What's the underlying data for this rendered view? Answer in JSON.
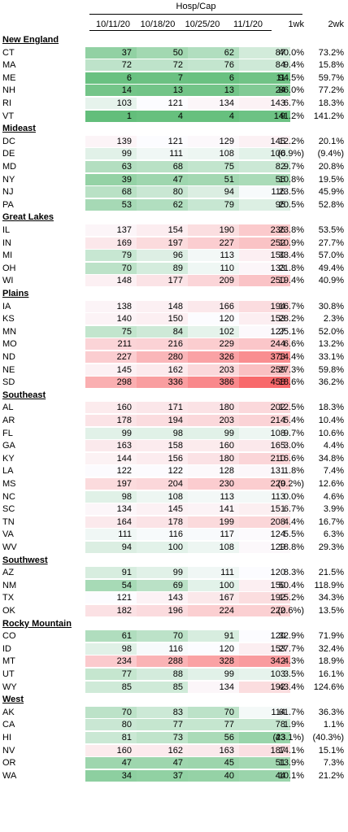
{
  "header": {
    "group_title": "Hosp/Cap",
    "dates": [
      "10/11/20",
      "10/18/20",
      "10/25/20",
      "11/1/20"
    ],
    "change_cols": [
      "1wk",
      "2wk"
    ]
  },
  "regions": [
    {
      "name": "New England",
      "rows": [
        {
          "state": "CT",
          "values": [
            37,
            50,
            62,
            87
          ],
          "wk1": "40.0%",
          "wk2": "73.2%"
        },
        {
          "state": "MA",
          "values": [
            72,
            72,
            76,
            84
          ],
          "wk1": "9.4%",
          "wk2": "15.8%"
        },
        {
          "state": "ME",
          "values": [
            6,
            7,
            6,
            11
          ],
          "wk1": "94.5%",
          "wk2": "59.7%"
        },
        {
          "state": "NH",
          "values": [
            14,
            13,
            13,
            24
          ],
          "wk1": "86.0%",
          "wk2": "77.2%"
        },
        {
          "state": "RI",
          "values": [
            103,
            121,
            134,
            143
          ],
          "wk1": "6.7%",
          "wk2": "18.3%"
        },
        {
          "state": "VT",
          "values": [
            1,
            4,
            4,
            9
          ],
          "wk1": "141.2%",
          "wk2": "141.2%"
        }
      ]
    },
    {
      "name": "Mideast",
      "rows": [
        {
          "state": "DC",
          "values": [
            139,
            121,
            129,
            145
          ],
          "wk1": "12.2%",
          "wk2": "20.1%"
        },
        {
          "state": "DE",
          "values": [
            99,
            111,
            108,
            100
          ],
          "wk1": "(6.9%)",
          "wk2": "(9.4%)"
        },
        {
          "state": "MD",
          "values": [
            63,
            68,
            75,
            82
          ],
          "wk1": "9.7%",
          "wk2": "20.8%"
        },
        {
          "state": "NY",
          "values": [
            39,
            47,
            51,
            56
          ],
          "wk1": "10.8%",
          "wk2": "19.5%"
        },
        {
          "state": "NJ",
          "values": [
            68,
            80,
            94,
            116
          ],
          "wk1": "23.5%",
          "wk2": "45.9%"
        },
        {
          "state": "PA",
          "values": [
            53,
            62,
            79,
            95
          ],
          "wk1": "20.5%",
          "wk2": "52.8%"
        }
      ]
    },
    {
      "name": "Great Lakes",
      "rows": [
        {
          "state": "IL",
          "values": [
            137,
            154,
            190,
            236
          ],
          "wk1": "23.8%",
          "wk2": "53.5%"
        },
        {
          "state": "IN",
          "values": [
            169,
            197,
            227,
            252
          ],
          "wk1": "10.9%",
          "wk2": "27.7%"
        },
        {
          "state": "MI",
          "values": [
            79,
            96,
            113,
            150
          ],
          "wk1": "33.4%",
          "wk2": "57.0%"
        },
        {
          "state": "OH",
          "values": [
            70,
            89,
            110,
            133
          ],
          "wk1": "21.8%",
          "wk2": "49.4%"
        },
        {
          "state": "WI",
          "values": [
            148,
            177,
            209,
            250
          ],
          "wk1": "19.4%",
          "wk2": "40.9%"
        }
      ]
    },
    {
      "name": "Plains",
      "rows": [
        {
          "state": "IA",
          "values": [
            138,
            148,
            166,
            194
          ],
          "wk1": "16.7%",
          "wk2": "30.8%"
        },
        {
          "state": "KS",
          "values": [
            140,
            150,
            120,
            153
          ],
          "wk1": "28.2%",
          "wk2": "2.3%"
        },
        {
          "state": "MN",
          "values": [
            75,
            84,
            102,
            127
          ],
          "wk1": "25.1%",
          "wk2": "52.0%"
        },
        {
          "state": "MO",
          "values": [
            211,
            216,
            229,
            244
          ],
          "wk1": "6.6%",
          "wk2": "13.2%"
        },
        {
          "state": "ND",
          "values": [
            227,
            280,
            326,
            373
          ],
          "wk1": "14.4%",
          "wk2": "33.1%"
        },
        {
          "state": "NE",
          "values": [
            145,
            162,
            203,
            259
          ],
          "wk1": "27.3%",
          "wk2": "59.8%"
        },
        {
          "state": "SD",
          "values": [
            298,
            336,
            386,
            458
          ],
          "wk1": "18.6%",
          "wk2": "36.2%"
        }
      ]
    },
    {
      "name": "Southeast",
      "rows": [
        {
          "state": "AL",
          "values": [
            160,
            171,
            180,
            202
          ],
          "wk1": "12.5%",
          "wk2": "18.3%"
        },
        {
          "state": "AR",
          "values": [
            178,
            194,
            203,
            214
          ],
          "wk1": "5.4%",
          "wk2": "10.4%"
        },
        {
          "state": "FL",
          "values": [
            99,
            98,
            99,
            108
          ],
          "wk1": "9.7%",
          "wk2": "10.6%"
        },
        {
          "state": "GA",
          "values": [
            163,
            158,
            160,
            165
          ],
          "wk1": "3.0%",
          "wk2": "4.4%"
        },
        {
          "state": "KY",
          "values": [
            144,
            156,
            180,
            210
          ],
          "wk1": "16.6%",
          "wk2": "34.8%"
        },
        {
          "state": "LA",
          "values": [
            122,
            122,
            128,
            131
          ],
          "wk1": "1.8%",
          "wk2": "7.4%"
        },
        {
          "state": "MS",
          "values": [
            197,
            204,
            230,
            229
          ],
          "wk1": "(0.2%)",
          "wk2": "12.6%"
        },
        {
          "state": "NC",
          "values": [
            98,
            108,
            113,
            113
          ],
          "wk1": "0.0%",
          "wk2": "4.6%"
        },
        {
          "state": "SC",
          "values": [
            134,
            145,
            141,
            151
          ],
          "wk1": "6.7%",
          "wk2": "3.9%"
        },
        {
          "state": "TN",
          "values": [
            164,
            178,
            199,
            208
          ],
          "wk1": "4.4%",
          "wk2": "16.7%"
        },
        {
          "state": "VA",
          "values": [
            111,
            116,
            117,
            124
          ],
          "wk1": "5.5%",
          "wk2": "6.3%"
        },
        {
          "state": "WV",
          "values": [
            94,
            100,
            108,
            129
          ],
          "wk1": "18.8%",
          "wk2": "29.3%"
        }
      ]
    },
    {
      "name": "Southwest",
      "rows": [
        {
          "state": "AZ",
          "values": [
            91,
            99,
            111,
            120
          ],
          "wk1": "8.3%",
          "wk2": "21.5%"
        },
        {
          "state": "NM",
          "values": [
            54,
            69,
            100,
            150
          ],
          "wk1": "50.4%",
          "wk2": "118.9%"
        },
        {
          "state": "TX",
          "values": [
            121,
            143,
            167,
            192
          ],
          "wk1": "15.2%",
          "wk2": "34.3%"
        },
        {
          "state": "OK",
          "values": [
            182,
            196,
            224,
            222
          ],
          "wk1": "(0.6%)",
          "wk2": "13.5%"
        }
      ]
    },
    {
      "name": "Rocky Mountain",
      "rows": [
        {
          "state": "CO",
          "values": [
            61,
            70,
            91,
            120
          ],
          "wk1": "32.9%",
          "wk2": "71.9%"
        },
        {
          "state": "ID",
          "values": [
            98,
            116,
            120,
            153
          ],
          "wk1": "27.7%",
          "wk2": "32.4%"
        },
        {
          "state": "MT",
          "values": [
            234,
            288,
            328,
            342
          ],
          "wk1": "4.3%",
          "wk2": "18.9%"
        },
        {
          "state": "UT",
          "values": [
            77,
            88,
            99,
            103
          ],
          "wk1": "3.5%",
          "wk2": "16.1%"
        },
        {
          "state": "WY",
          "values": [
            85,
            85,
            134,
            192
          ],
          "wk1": "43.4%",
          "wk2": "124.6%"
        }
      ]
    },
    {
      "name": "West",
      "rows": [
        {
          "state": "AK",
          "values": [
            70,
            83,
            70,
            114
          ],
          "wk1": "61.7%",
          "wk2": "36.3%"
        },
        {
          "state": "CA",
          "values": [
            80,
            77,
            77,
            78
          ],
          "wk1": "1.9%",
          "wk2": "1.1%"
        },
        {
          "state": "HI",
          "values": [
            81,
            73,
            56,
            43
          ],
          "wk1": "(23.1%)",
          "wk2": "(40.3%)"
        },
        {
          "state": "NV",
          "values": [
            160,
            162,
            163,
            187
          ],
          "wk1": "14.1%",
          "wk2": "15.1%"
        },
        {
          "state": "OR",
          "values": [
            47,
            47,
            45,
            51
          ],
          "wk1": "13.9%",
          "wk2": "7.3%"
        },
        {
          "state": "WA",
          "values": [
            34,
            37,
            40,
            44
          ],
          "wk1": "10.1%",
          "wk2": "21.2%"
        }
      ]
    }
  ],
  "colors": {
    "low": "#63be7b",
    "mid": "#fcfcff",
    "high": "#f8696b"
  }
}
